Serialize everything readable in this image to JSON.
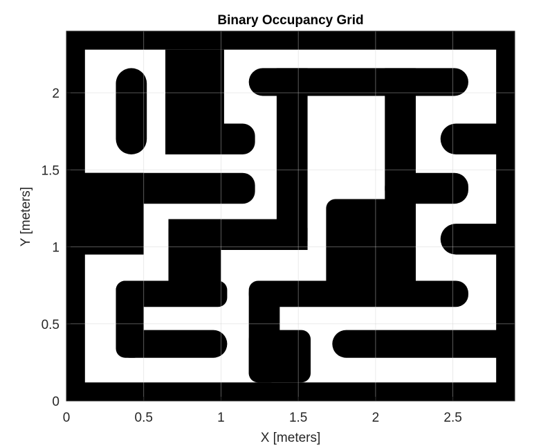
{
  "chart_data": {
    "type": "heatmap",
    "title": "Binary Occupancy Grid",
    "xlabel": "X [meters]",
    "ylabel": "Y [meters]",
    "xlim": [
      0,
      2.9
    ],
    "ylim": [
      0,
      2.4
    ],
    "xticks": [
      0,
      0.5,
      1,
      1.5,
      2,
      2.5
    ],
    "xtick_labels": [
      "0",
      "0.5",
      "1",
      "1.5",
      "2",
      "2.5"
    ],
    "yticks": [
      0,
      0.5,
      1,
      1.5,
      2
    ],
    "ytick_labels": [
      "0",
      "0.5",
      "1",
      "1.5",
      "2"
    ],
    "grid": true,
    "colors": {
      "occupied": "#000000",
      "free": "#ffffff"
    },
    "occupied_rects": [
      {
        "x0": 0.0,
        "x1": 2.9,
        "y0": 0.0,
        "y1": 0.12
      },
      {
        "x0": 0.0,
        "x1": 2.9,
        "y0": 2.28,
        "y1": 2.4
      },
      {
        "x0": 0.0,
        "x1": 0.12,
        "y0": 0.0,
        "y1": 2.4
      },
      {
        "x0": 2.78,
        "x1": 2.9,
        "y0": 0.0,
        "y1": 2.4
      },
      {
        "x0": 0.32,
        "x1": 0.52,
        "y0": 1.6,
        "y1": 2.16,
        "r": 0.1
      },
      {
        "x0": 0.64,
        "x1": 1.02,
        "y0": 1.6,
        "y1": 2.28
      },
      {
        "x0": 0.64,
        "x1": 1.22,
        "y0": 1.6,
        "y1": 1.8,
        "r": 0.08
      },
      {
        "x0": 1.18,
        "x1": 2.6,
        "y0": 1.98,
        "y1": 2.16,
        "r": 0.09
      },
      {
        "x0": 1.36,
        "x1": 1.56,
        "y0": 0.98,
        "y1": 2.16
      },
      {
        "x0": 2.06,
        "x1": 2.26,
        "y0": 0.68,
        "y1": 2.16
      },
      {
        "x0": 2.42,
        "x1": 2.9,
        "y0": 1.6,
        "y1": 1.8,
        "r": 0.1
      },
      {
        "x0": 0.0,
        "x1": 1.22,
        "y0": 1.28,
        "y1": 1.48,
        "r": 0.08
      },
      {
        "x0": 0.0,
        "x1": 0.5,
        "y0": 0.95,
        "y1": 1.48
      },
      {
        "x0": 2.06,
        "x1": 2.6,
        "y0": 1.28,
        "y1": 1.48,
        "r": 0.09
      },
      {
        "x0": 1.68,
        "x1": 2.26,
        "y0": 0.68,
        "y1": 1.31,
        "r": 0.06
      },
      {
        "x0": 0.66,
        "x1": 1.56,
        "y0": 0.98,
        "y1": 1.18,
        "r": 0.06
      },
      {
        "x0": 0.66,
        "x1": 1.0,
        "y0": 0.68,
        "y1": 1.18
      },
      {
        "x0": 2.42,
        "x1": 2.9,
        "y0": 0.95,
        "y1": 1.15,
        "r": 0.1
      },
      {
        "x0": 0.32,
        "x1": 1.04,
        "y0": 0.61,
        "y1": 0.78,
        "r": 0.06
      },
      {
        "x0": 0.32,
        "x1": 0.5,
        "y0": 0.28,
        "y1": 0.78,
        "r": 0.06
      },
      {
        "x0": 0.32,
        "x1": 1.04,
        "y0": 0.28,
        "y1": 0.46,
        "r": 0.09
      },
      {
        "x0": 1.18,
        "x1": 2.6,
        "y0": 0.61,
        "y1": 0.78,
        "r": 0.08
      },
      {
        "x0": 1.18,
        "x1": 1.38,
        "y0": 0.12,
        "y1": 0.78,
        "r": 0.06
      },
      {
        "x0": 1.18,
        "x1": 1.58,
        "y0": 0.12,
        "y1": 0.46,
        "r": 0.06
      },
      {
        "x0": 1.72,
        "x1": 2.9,
        "y0": 0.28,
        "y1": 0.46,
        "r": 0.09
      }
    ]
  }
}
